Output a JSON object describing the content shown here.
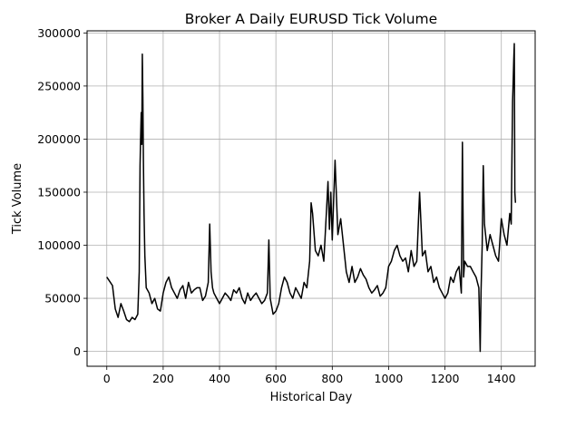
{
  "chart_data": {
    "type": "line",
    "title": "Broker A Daily EURUSD Tick Volume",
    "xlabel": "Historical Day",
    "ylabel": "Tick Volume",
    "xlim": [
      -70,
      1520
    ],
    "ylim": [
      -14000,
      302000
    ],
    "xticks": [
      0,
      200,
      400,
      600,
      800,
      1000,
      1200,
      1400
    ],
    "yticks": [
      0,
      50000,
      100000,
      150000,
      200000,
      250000,
      300000
    ],
    "grid": true,
    "line_color": "#000000",
    "series": [
      {
        "x": [
          0,
          10,
          20,
          30,
          40,
          50,
          60,
          70,
          80,
          90,
          100,
          110,
          115,
          118,
          120,
          122,
          124,
          126,
          128,
          130,
          132,
          135,
          140,
          150,
          160,
          170,
          180,
          190,
          200,
          210,
          220,
          230,
          240,
          250,
          260,
          270,
          280,
          290,
          300,
          310,
          320,
          330,
          340,
          350,
          360,
          365,
          370,
          375,
          380,
          390,
          400,
          410,
          420,
          430,
          440,
          450,
          460,
          470,
          480,
          490,
          500,
          510,
          520,
          530,
          540,
          550,
          560,
          570,
          575,
          580,
          590,
          600,
          610,
          620,
          630,
          640,
          650,
          660,
          670,
          680,
          690,
          700,
          710,
          720,
          725,
          730,
          740,
          750,
          760,
          770,
          780,
          785,
          790,
          795,
          800,
          810,
          820,
          830,
          840,
          850,
          860,
          870,
          880,
          890,
          900,
          910,
          920,
          930,
          940,
          950,
          960,
          970,
          980,
          990,
          1000,
          1010,
          1020,
          1030,
          1040,
          1050,
          1060,
          1070,
          1080,
          1090,
          1100,
          1110,
          1120,
          1130,
          1140,
          1150,
          1160,
          1170,
          1180,
          1190,
          1200,
          1210,
          1220,
          1230,
          1240,
          1250,
          1258,
          1262,
          1266,
          1270,
          1280,
          1290,
          1300,
          1310,
          1320,
          1325,
          1328,
          1332,
          1336,
          1340,
          1350,
          1360,
          1370,
          1380,
          1390,
          1400,
          1410,
          1420,
          1430,
          1435,
          1438,
          1440,
          1442,
          1444,
          1446,
          1448,
          1450
        ],
        "values": [
          70000,
          66000,
          62000,
          40000,
          32000,
          45000,
          38000,
          30000,
          28000,
          32000,
          30000,
          35000,
          75000,
          175000,
          200000,
          225000,
          195000,
          280000,
          240000,
          180000,
          130000,
          90000,
          60000,
          55000,
          45000,
          50000,
          40000,
          38000,
          55000,
          65000,
          70000,
          60000,
          55000,
          50000,
          58000,
          62000,
          50000,
          65000,
          55000,
          58000,
          60000,
          60000,
          48000,
          52000,
          65000,
          120000,
          75000,
          60000,
          55000,
          50000,
          45000,
          50000,
          55000,
          52000,
          48000,
          58000,
          55000,
          60000,
          50000,
          45000,
          55000,
          48000,
          52000,
          55000,
          50000,
          45000,
          48000,
          55000,
          105000,
          50000,
          35000,
          38000,
          45000,
          60000,
          70000,
          65000,
          55000,
          50000,
          60000,
          55000,
          50000,
          65000,
          60000,
          85000,
          140000,
          130000,
          95000,
          90000,
          100000,
          85000,
          135000,
          160000,
          115000,
          150000,
          105000,
          180000,
          110000,
          125000,
          100000,
          75000,
          65000,
          80000,
          65000,
          70000,
          78000,
          72000,
          68000,
          60000,
          55000,
          58000,
          62000,
          52000,
          55000,
          60000,
          80000,
          85000,
          95000,
          100000,
          90000,
          85000,
          88000,
          75000,
          95000,
          80000,
          85000,
          150000,
          90000,
          95000,
          75000,
          80000,
          65000,
          70000,
          60000,
          55000,
          50000,
          55000,
          70000,
          65000,
          75000,
          80000,
          55000,
          197000,
          70000,
          85000,
          80000,
          80000,
          75000,
          70000,
          60000,
          0,
          55000,
          100000,
          175000,
          120000,
          95000,
          110000,
          100000,
          90000,
          85000,
          125000,
          110000,
          100000,
          130000,
          120000,
          190000,
          235000,
          255000,
          275000,
          290000,
          150000,
          140000
        ]
      }
    ]
  }
}
